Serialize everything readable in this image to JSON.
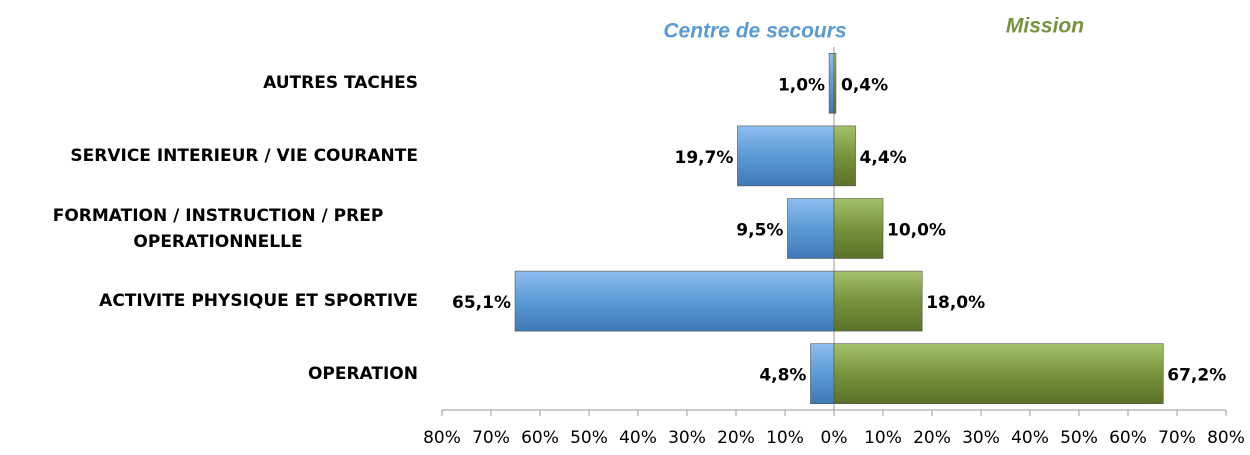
{
  "chart_data": {
    "type": "diverging-bar",
    "categories": [
      "AUTRES TACHES",
      "SERVICE INTERIEUR / VIE COURANTE",
      "FORMATION / INSTRUCTION / PREP OPERATIONNELLE",
      "ACTIVITE PHYSIQUE ET SPORTIVE",
      "OPERATION"
    ],
    "series": [
      {
        "name": "Centre de secours",
        "color": "#5b9bd5",
        "values": [
          -1.0,
          -19.7,
          -9.5,
          -65.1,
          -4.8
        ],
        "value_labels": [
          "1,0%",
          "19,7%",
          "9,5%",
          "65,1%",
          "4,8%"
        ]
      },
      {
        "name": "Mission",
        "color": "#77933c",
        "values": [
          0.4,
          4.4,
          10.0,
          18.0,
          67.2
        ],
        "value_labels": [
          "0,4%",
          "4,4%",
          "10,0%",
          "18,0%",
          "67,2%"
        ]
      }
    ],
    "xlim": [
      -80,
      80
    ],
    "xticks": [
      {
        "value": -80,
        "label": "80%"
      },
      {
        "value": -70,
        "label": "70%"
      },
      {
        "value": -60,
        "label": "60%"
      },
      {
        "value": -50,
        "label": "50%"
      },
      {
        "value": -40,
        "label": "40%"
      },
      {
        "value": -30,
        "label": "30%"
      },
      {
        "value": -20,
        "label": "20%"
      },
      {
        "value": -10,
        "label": "10%"
      },
      {
        "value": 0,
        "label": "0%"
      },
      {
        "value": 10,
        "label": "10%"
      },
      {
        "value": 20,
        "label": "20%"
      },
      {
        "value": 30,
        "label": "30%"
      },
      {
        "value": 40,
        "label": "40%"
      },
      {
        "value": 50,
        "label": "50%"
      },
      {
        "value": 60,
        "label": "60%"
      },
      {
        "value": 70,
        "label": "70%"
      },
      {
        "value": 80,
        "label": "80%"
      }
    ]
  }
}
